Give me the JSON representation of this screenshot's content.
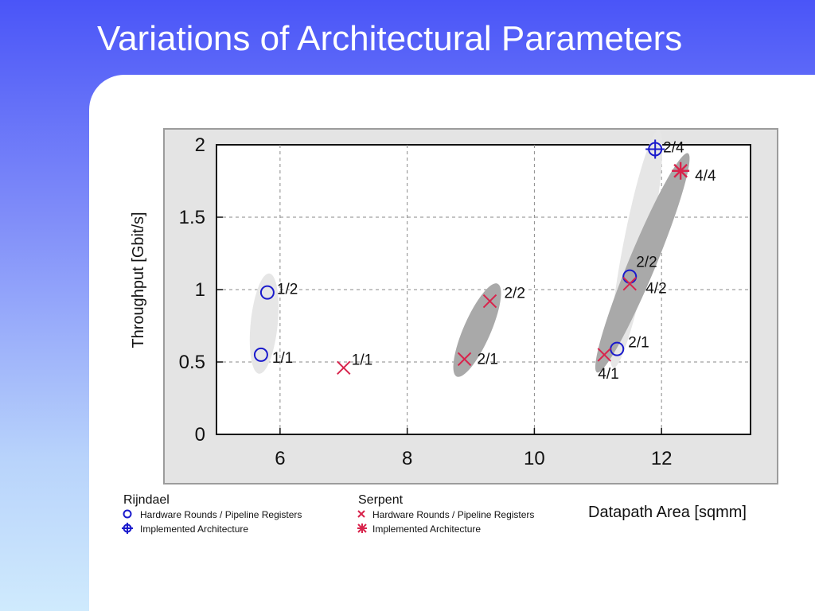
{
  "slide": {
    "title": "Variations of Architectural Parameters"
  },
  "colors": {
    "rijndael": "#1a1acc",
    "serpent": "#d8244c",
    "light_group": "#e6e6e6",
    "dark_group": "#a9a9a9"
  },
  "chart_data": {
    "type": "scatter",
    "title": "",
    "xlabel": "Datapath Area [sqmm]",
    "ylabel": "Throughput [Gbit/s]",
    "xlim": [
      5,
      13.4
    ],
    "ylim": [
      0,
      2
    ],
    "x_ticks": [
      "6",
      "8",
      "10",
      "12"
    ],
    "y_ticks": [
      "0",
      "0.5",
      "1",
      "1.5",
      "2"
    ],
    "grid": true,
    "series": [
      {
        "name": "Hardware Rounds / Pipeline Registers",
        "group": "Rijndael",
        "marker": "circle",
        "points": [
          {
            "x": 5.7,
            "y": 0.55,
            "label": "1/1"
          },
          {
            "x": 5.8,
            "y": 0.98,
            "label": "1/2"
          },
          {
            "x": 11.3,
            "y": 0.59,
            "label": "2/1"
          },
          {
            "x": 11.5,
            "y": 1.09,
            "label": "2/2"
          }
        ]
      },
      {
        "name": "Implemented Architecture",
        "group": "Rijndael",
        "marker": "crosshair",
        "points": [
          {
            "x": 11.9,
            "y": 1.97,
            "label": "2/4"
          }
        ]
      },
      {
        "name": "Hardware Rounds / Pipeline Registers",
        "group": "Serpent",
        "marker": "x",
        "points": [
          {
            "x": 7.0,
            "y": 0.46,
            "label": "1/1"
          },
          {
            "x": 8.9,
            "y": 0.52,
            "label": "2/1"
          },
          {
            "x": 9.3,
            "y": 0.92,
            "label": "2/2"
          },
          {
            "x": 11.1,
            "y": 0.55,
            "label": "4/1"
          },
          {
            "x": 11.5,
            "y": 1.04,
            "label": "4/2"
          }
        ]
      },
      {
        "name": "Implemented Architecture",
        "group": "Serpent",
        "marker": "star",
        "points": [
          {
            "x": 12.3,
            "y": 1.82,
            "label": "4/4"
          }
        ]
      }
    ],
    "groups": [
      {
        "members": [
          [
            5.7,
            0.55
          ],
          [
            5.8,
            0.98
          ]
        ],
        "shade": "light"
      },
      {
        "members": [
          [
            8.9,
            0.52
          ],
          [
            9.3,
            0.92
          ]
        ],
        "shade": "dark"
      },
      {
        "members": [
          [
            11.3,
            0.59
          ],
          [
            11.9,
            1.97
          ]
        ],
        "shade": "light"
      },
      {
        "members": [
          [
            11.1,
            0.55
          ],
          [
            12.3,
            1.82
          ]
        ],
        "shade": "dark"
      }
    ],
    "legend": {
      "placement": "bottom-left",
      "groups": [
        {
          "title": "Rijndael",
          "entries": [
            "Hardware Rounds / Pipeline Registers",
            "Implemented Architecture"
          ]
        },
        {
          "title": "Serpent",
          "entries": [
            "Hardware Rounds / Pipeline Registers",
            "Implemented Architecture"
          ]
        }
      ]
    }
  }
}
